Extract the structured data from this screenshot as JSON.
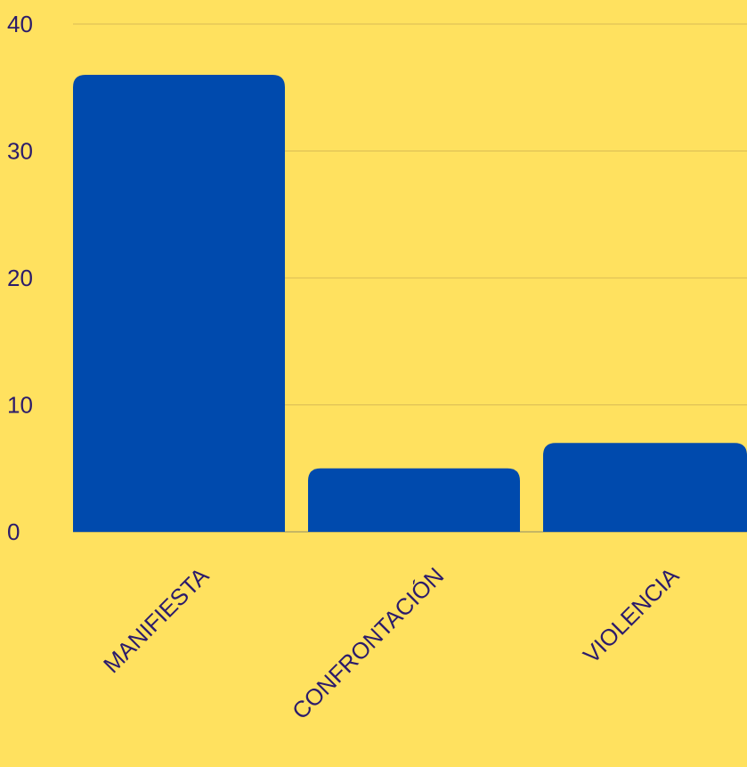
{
  "colors": {
    "background": "#FFE15F",
    "bar": "#004AAD",
    "text": "#2B1B6B",
    "grid": "#D9BC55"
  },
  "chart_data": {
    "type": "bar",
    "categories": [
      "MANIFIESTA",
      "CONFRONTACIÓN",
      "VIOLENCIA"
    ],
    "values": [
      36,
      5,
      7
    ],
    "ylim": [
      0,
      40
    ],
    "yticks": [
      "0",
      "10",
      "20",
      "30",
      "40"
    ],
    "grid": true,
    "title": "",
    "xlabel": "",
    "ylabel": ""
  }
}
